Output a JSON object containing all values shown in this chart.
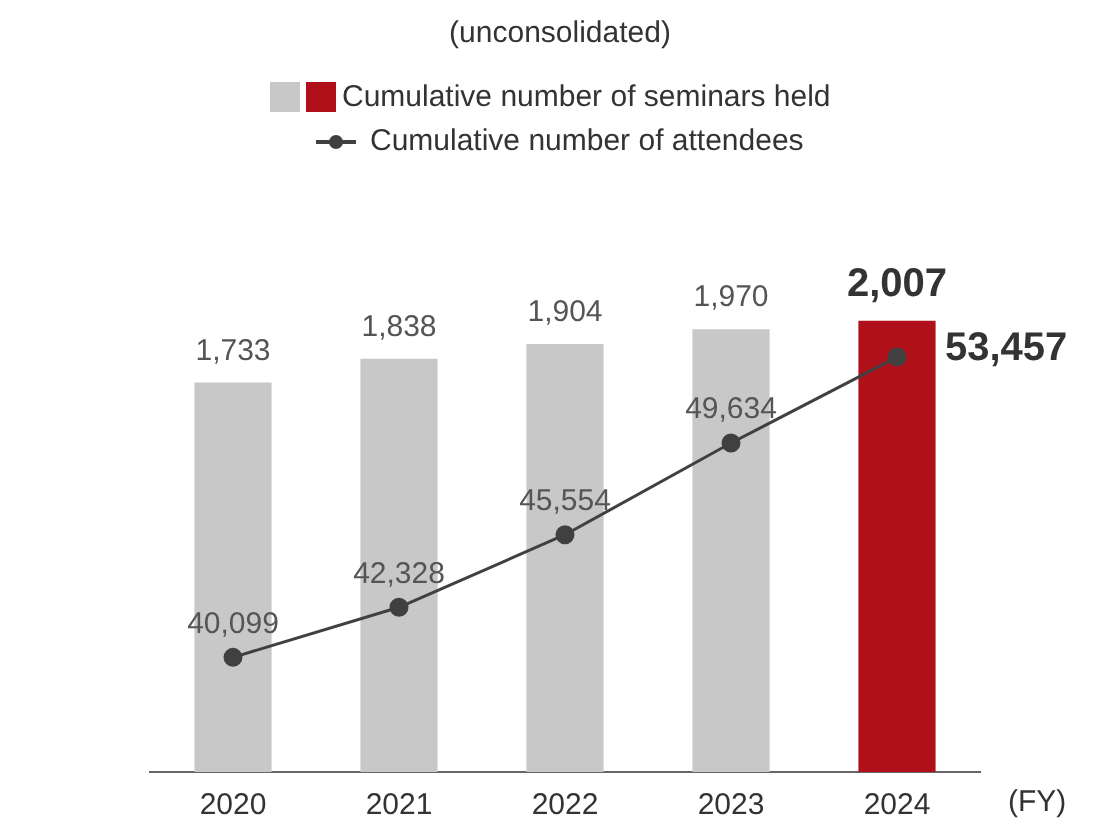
{
  "chart_data": {
    "type": "bar",
    "subtitle": "(unconsolidated)",
    "xlabel": "(FY)",
    "categories": [
      "2020",
      "2021",
      "2022",
      "2023",
      "2024"
    ],
    "series": [
      {
        "name": "Cumulative number of seminars held",
        "colors": [
          "#c8c8c8",
          "#c8c8c8",
          "#c8c8c8",
          "#c8c8c8",
          "#b0101a"
        ],
        "values": [
          1733,
          1838,
          1904,
          1970,
          2007
        ],
        "value_labels": [
          "1,733",
          "1,838",
          "1,904",
          "1,970",
          "2,007"
        ]
      },
      {
        "name": "Cumulative number of attendees",
        "type": "line",
        "axis": "y2",
        "color": "#404040",
        "values": [
          40099,
          42328,
          45554,
          49634,
          53457
        ],
        "value_labels": [
          "40,099",
          "42,328",
          "45,554",
          "49,634",
          "53,457"
        ]
      }
    ],
    "tick_labels": "x",
    "marker": "circle",
    "legend": "top",
    "grid": false
  }
}
